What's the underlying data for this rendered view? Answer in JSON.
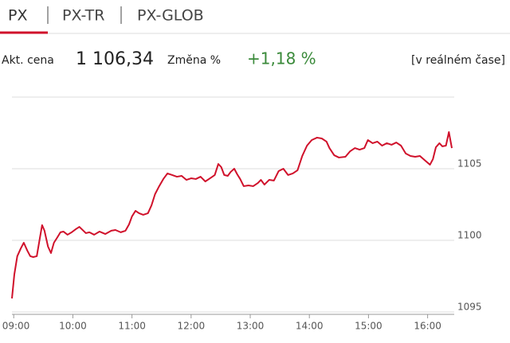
{
  "tabs": [
    "PX",
    "PX-TR",
    "PX-GLOB"
  ],
  "quote": {
    "price_label": "Akt. cena",
    "price": "1 106,34",
    "change_label": "Změna %",
    "change": "+1,18 %",
    "realtime": "[v reálném čase]"
  },
  "chart_data": {
    "type": "line",
    "color": "#d0112b",
    "grid": true,
    "x": [
      8.97,
      9.01,
      9.06,
      9.12,
      9.17,
      9.23,
      9.28,
      9.33,
      9.39,
      9.44,
      9.48,
      9.52,
      9.58,
      9.63,
      9.68,
      9.74,
      9.79,
      9.84,
      9.91,
      9.98,
      10.05,
      10.11,
      10.22,
      10.28,
      10.36,
      10.45,
      10.55,
      10.65,
      10.72,
      10.81,
      10.89,
      10.95,
      11.0,
      11.06,
      11.12,
      11.19,
      11.27,
      11.33,
      11.39,
      11.46,
      11.53,
      11.6,
      11.68,
      11.76,
      11.84,
      11.92,
      12.0,
      12.08,
      12.16,
      12.24,
      12.32,
      12.4,
      12.46,
      12.51,
      12.56,
      12.62,
      12.67,
      12.73,
      12.78,
      12.83,
      12.89,
      12.97,
      13.05,
      13.13,
      13.18,
      13.24,
      13.32,
      13.4,
      13.48,
      13.56,
      13.64,
      13.72,
      13.8,
      13.88,
      13.96,
      14.04,
      14.13,
      14.21,
      14.29,
      14.34,
      14.42,
      14.5,
      14.61,
      14.69,
      14.77,
      14.85,
      14.93,
      14.99,
      15.07,
      15.15,
      15.23,
      15.31,
      15.39,
      15.47,
      15.55,
      15.63,
      15.71,
      15.79,
      15.87,
      15.96,
      16.04,
      16.09,
      16.14,
      16.2,
      16.25,
      16.31,
      16.36,
      16.41
    ],
    "values": [
      1095.94,
      1097.61,
      1098.89,
      1099.44,
      1099.83,
      1099.28,
      1098.89,
      1098.83,
      1098.89,
      1100.11,
      1101.06,
      1100.67,
      1099.56,
      1099.11,
      1099.83,
      1100.22,
      1100.56,
      1100.61,
      1100.39,
      1100.56,
      1100.78,
      1100.94,
      1100.5,
      1100.56,
      1100.39,
      1100.61,
      1100.44,
      1100.67,
      1100.72,
      1100.56,
      1100.67,
      1101.11,
      1101.67,
      1102.06,
      1101.89,
      1101.78,
      1101.89,
      1102.44,
      1103.22,
      1103.78,
      1104.28,
      1104.67,
      1104.56,
      1104.44,
      1104.5,
      1104.22,
      1104.33,
      1104.28,
      1104.44,
      1104.11,
      1104.33,
      1104.56,
      1105.33,
      1105.11,
      1104.56,
      1104.5,
      1104.78,
      1105.0,
      1104.61,
      1104.28,
      1103.78,
      1103.83,
      1103.78,
      1104.0,
      1104.22,
      1103.89,
      1104.22,
      1104.17,
      1104.83,
      1105.0,
      1104.56,
      1104.67,
      1104.89,
      1105.89,
      1106.61,
      1107.0,
      1107.17,
      1107.11,
      1106.89,
      1106.44,
      1105.94,
      1105.78,
      1105.83,
      1106.22,
      1106.44,
      1106.33,
      1106.44,
      1107.0,
      1106.78,
      1106.89,
      1106.61,
      1106.78,
      1106.67,
      1106.83,
      1106.61,
      1106.06,
      1105.89,
      1105.83,
      1105.89,
      1105.56,
      1105.28,
      1105.67,
      1106.5,
      1106.78,
      1106.56,
      1106.61,
      1107.56,
      1106.44
    ],
    "xlim": [
      8.97,
      16.45
    ],
    "xticks": [
      {
        "value": 9,
        "label": "09:00"
      },
      {
        "value": 10,
        "label": "10:00"
      },
      {
        "value": 11,
        "label": "11:00"
      },
      {
        "value": 12,
        "label": "12:00"
      },
      {
        "value": 13,
        "label": "13:00"
      },
      {
        "value": 14,
        "label": "14:00"
      },
      {
        "value": 15,
        "label": "15:00"
      },
      {
        "value": 16,
        "label": "16:00"
      }
    ],
    "ylim": [
      1094.83,
      1110
    ],
    "yticks": [
      1095,
      1100,
      1105
    ]
  }
}
